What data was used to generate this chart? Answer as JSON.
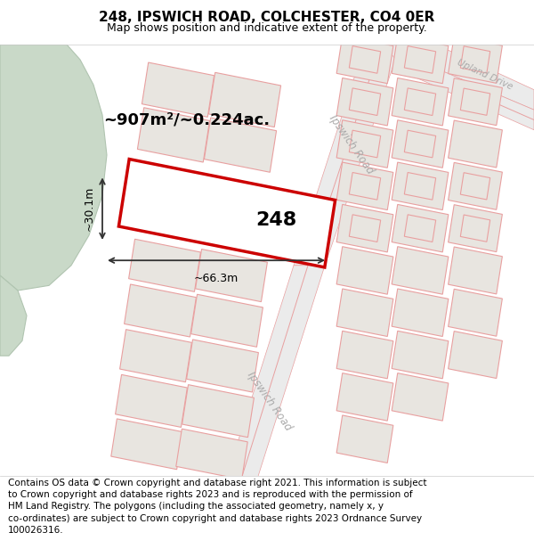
{
  "title": "248, IPSWICH ROAD, COLCHESTER, CO4 0ER",
  "subtitle": "Map shows position and indicative extent of the property.",
  "footer": "Contains OS data © Crown copyright and database right 2021. This information is subject\nto Crown copyright and database rights 2023 and is reproduced with the permission of\nHM Land Registry. The polygons (including the associated geometry, namely x, y\nco-ordinates) are subject to Crown copyright and database rights 2023 Ordnance Survey\n100026316.",
  "area_label": "~907m²/~0.224ac.",
  "width_label": "~66.3m",
  "height_label": "~30.1m",
  "plot_number": "248",
  "map_bg": "#f2f0ed",
  "green_color": "#c9d9c8",
  "green_edge": "#b0c4b0",
  "road_fill": "#ebebeb",
  "road_edge": "#e8a0a0",
  "plot_fill": "#ffffff",
  "plot_border": "#cc0000",
  "other_fill": "#e8e5e0",
  "other_edge": "#e8a0a0",
  "title_fontsize": 11,
  "subtitle_fontsize": 9,
  "footer_fontsize": 7.5
}
